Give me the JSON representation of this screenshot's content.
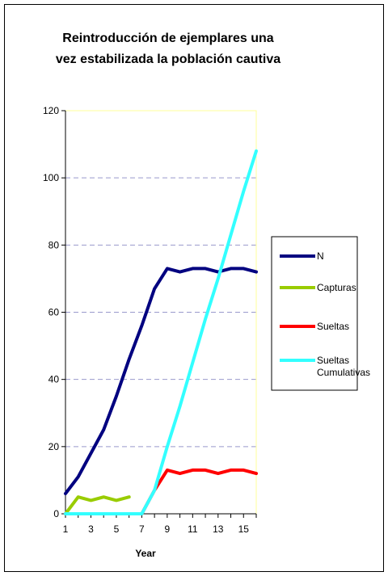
{
  "chart_data": {
    "type": "line",
    "title_lines": [
      "Reintroducción de ejemplares una",
      "vez estabilizada la población cautiva"
    ],
    "xlabel": "Year",
    "ylabel": "",
    "x": [
      1,
      2,
      3,
      4,
      5,
      6,
      7,
      8,
      9,
      10,
      11,
      12,
      13,
      14,
      15,
      16
    ],
    "x_tick_labels": [
      "1",
      "3",
      "5",
      "7",
      "9",
      "11",
      "13",
      "15"
    ],
    "y_tick_labels": [
      "0",
      "20",
      "40",
      "60",
      "80",
      "100",
      "120"
    ],
    "ylim": [
      0,
      120
    ],
    "grid": "horizontal dashed",
    "legend_position": "right",
    "plot_area_color": "#ffffff",
    "plot_border_color": "#ffff99",
    "series": [
      {
        "name": "N",
        "color": "#000080",
        "values": [
          6,
          11,
          18,
          25,
          35,
          46,
          56,
          67,
          73,
          72,
          73,
          73,
          72,
          73,
          73,
          72
        ]
      },
      {
        "name": "Capturas",
        "color": "#99cc00",
        "values": [
          0,
          5,
          4,
          5,
          4,
          5,
          null,
          null,
          null,
          null,
          null,
          null,
          null,
          null,
          null,
          null
        ]
      },
      {
        "name": "Sueltas",
        "color": "#ff0000",
        "values": [
          0,
          0,
          0,
          0,
          0,
          0,
          0,
          7,
          13,
          12,
          13,
          13,
          12,
          13,
          13,
          12
        ]
      },
      {
        "name": "Sueltas Cumulativas",
        "name_lines": [
          "Sueltas",
          "Cumulativas"
        ],
        "color": "#33ffff",
        "values": [
          0,
          0,
          0,
          0,
          0,
          0,
          0,
          7,
          20,
          32,
          45,
          58,
          70,
          83,
          96,
          108
        ]
      }
    ]
  }
}
